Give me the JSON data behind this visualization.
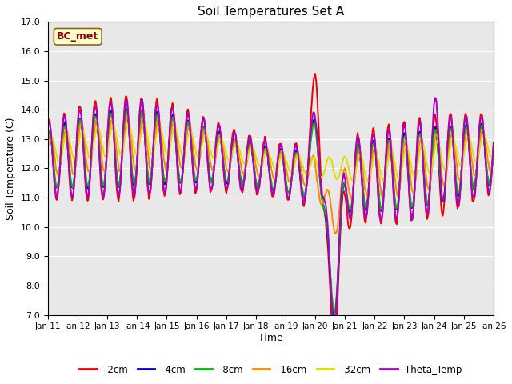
{
  "title": "Soil Temperatures Set A",
  "xlabel": "Time",
  "ylabel": "Soil Temperature (C)",
  "ylim": [
    7.0,
    17.0
  ],
  "yticks": [
    7.0,
    8.0,
    9.0,
    10.0,
    11.0,
    12.0,
    13.0,
    14.0,
    15.0,
    16.0,
    17.0
  ],
  "xtick_labels": [
    "Jan 11",
    "Jan 12",
    "Jan 13",
    "Jan 14",
    "Jan 15",
    "Jan 16",
    "Jan 17",
    "Jan 18",
    "Jan 19",
    "Jan 20",
    "Jan 21",
    "Jan 22",
    "Jan 23",
    "Jan 24",
    "Jan 25",
    "Jan 26"
  ],
  "annotation_text": "BC_met",
  "bg_color": "#e8e8e8",
  "series": {
    "-2cm": {
      "color": "#ee0000",
      "lw": 1.4
    },
    "-4cm": {
      "color": "#0000cc",
      "lw": 1.4
    },
    "-8cm": {
      "color": "#00bb00",
      "lw": 1.4
    },
    "-16cm": {
      "color": "#ff8800",
      "lw": 1.4
    },
    "-32cm": {
      "color": "#dddd00",
      "lw": 1.4
    },
    "Theta_Temp": {
      "color": "#aa00cc",
      "lw": 1.4
    }
  },
  "legend_order": [
    "-2cm",
    "-4cm",
    "-8cm",
    "-16cm",
    "-32cm",
    "Theta_Temp"
  ]
}
